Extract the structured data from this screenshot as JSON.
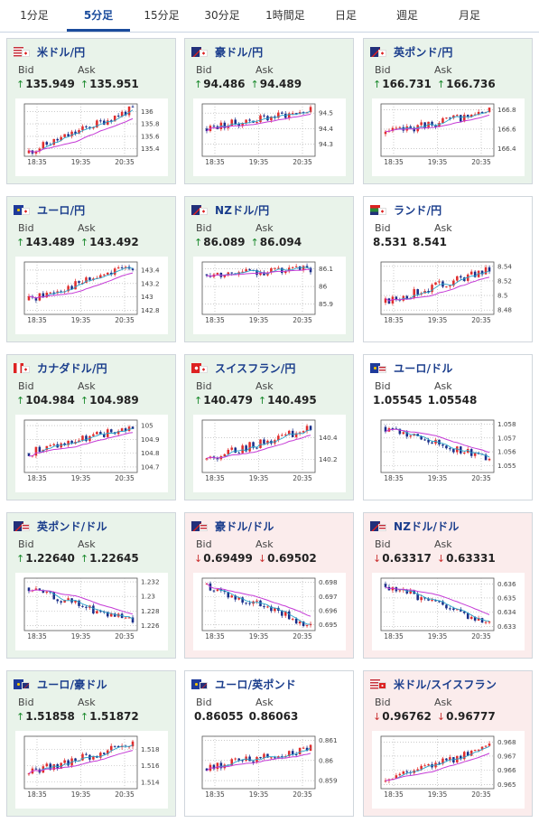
{
  "tabs": [
    {
      "label": "1分足",
      "active": false
    },
    {
      "label": "5分足",
      "active": true
    },
    {
      "label": "15分足",
      "active": false
    },
    {
      "label": "30分足",
      "active": false
    },
    {
      "label": "1時間足",
      "active": false
    },
    {
      "label": "日足",
      "active": false
    },
    {
      "label": "週足",
      "active": false
    },
    {
      "label": "月足",
      "active": false
    }
  ],
  "labels": {
    "bid": "Bid",
    "ask": "Ask"
  },
  "colors": {
    "up_bg": "#e9f3ea",
    "down_bg": "#fbecec",
    "flat_bg": "#ffffff",
    "candle_up": "#e02d2d",
    "candle_down": "#1a2f8a",
    "ma_short": "#29a3c9",
    "ma_long": "#c53ad6",
    "title": "#1a3d8c"
  },
  "cards": [
    {
      "pair": "米ドル/円",
      "flag": "us-jp-flag",
      "trend": "up",
      "bid_dir": "up",
      "ask_dir": "up",
      "bid": "135.949",
      "ask": "135.951",
      "chart_data": {
        "type": "candlestick",
        "x_ticks": [
          "18:35",
          "19:35",
          "20:35"
        ],
        "y_ticks": [
          "136",
          "135.8",
          "135.6",
          "135.4"
        ],
        "ylim": [
          135.28,
          136.12
        ],
        "start": 135.33,
        "end": 136.04,
        "seed": 11
      }
    },
    {
      "pair": "豪ドル/円",
      "flag": "au-jp-flag",
      "trend": "up",
      "bid_dir": "up",
      "ask_dir": "up",
      "bid": "94.486",
      "ask": "94.489",
      "chart_data": {
        "type": "candlestick",
        "x_ticks": [
          "18:35",
          "19:35",
          "20:35"
        ],
        "y_ticks": [
          "94.5",
          "94.4",
          "94.3"
        ],
        "ylim": [
          94.22,
          94.56
        ],
        "start": 94.4,
        "end": 94.52,
        "seed": 23
      }
    },
    {
      "pair": "英ポンド/円",
      "flag": "gb-jp-flag",
      "trend": "up",
      "bid_dir": "up",
      "ask_dir": "up",
      "bid": "166.731",
      "ask": "166.736",
      "chart_data": {
        "type": "candlestick",
        "x_ticks": [
          "18:35",
          "19:35",
          "20:35"
        ],
        "y_ticks": [
          "166.8",
          "166.6",
          "166.4"
        ],
        "ylim": [
          166.32,
          166.86
        ],
        "start": 166.55,
        "end": 166.78,
        "seed": 37
      }
    },
    {
      "pair": "ユーロ/円",
      "flag": "eu-jp-flag",
      "trend": "up",
      "bid_dir": "up",
      "ask_dir": "up",
      "bid": "143.489",
      "ask": "143.492",
      "chart_data": {
        "type": "candlestick",
        "x_ticks": [
          "18:35",
          "19:35",
          "20:35"
        ],
        "y_ticks": [
          "143.4",
          "143.2",
          "143",
          "142.8"
        ],
        "ylim": [
          142.74,
          143.52
        ],
        "start": 142.95,
        "end": 143.46,
        "seed": 41
      }
    },
    {
      "pair": "NZドル/円",
      "flag": "nz-jp-flag",
      "trend": "up",
      "bid_dir": "up",
      "ask_dir": "up",
      "bid": "86.089",
      "ask": "86.094",
      "chart_data": {
        "type": "candlestick",
        "x_ticks": [
          "18:35",
          "19:35",
          "20:35"
        ],
        "y_ticks": [
          "86.1",
          "86",
          "85.9"
        ],
        "ylim": [
          85.84,
          86.14
        ],
        "start": 86.07,
        "end": 86.1,
        "seed": 53
      }
    },
    {
      "pair": "ランド/円",
      "flag": "za-jp-flag",
      "trend": "flat",
      "bid_dir": "none",
      "ask_dir": "none",
      "bid": "8.531",
      "ask": "8.541",
      "chart_data": {
        "type": "candlestick",
        "x_ticks": [
          "18:35",
          "19:35",
          "20:35"
        ],
        "y_ticks": [
          "8.54",
          "8.52",
          "8.5",
          "8.48"
        ],
        "ylim": [
          8.474,
          8.546
        ],
        "start": 8.49,
        "end": 8.536,
        "seed": 67
      }
    },
    {
      "pair": "カナダドル/円",
      "flag": "ca-jp-flag",
      "trend": "up",
      "bid_dir": "up",
      "ask_dir": "up",
      "bid": "104.984",
      "ask": "104.989",
      "chart_data": {
        "type": "candlestick",
        "x_ticks": [
          "18:35",
          "19:35",
          "20:35"
        ],
        "y_ticks": [
          "105",
          "104.9",
          "104.8",
          "104.7"
        ],
        "ylim": [
          104.66,
          105.04
        ],
        "start": 104.8,
        "end": 104.99,
        "seed": 71
      }
    },
    {
      "pair": "スイスフラン/円",
      "flag": "ch-jp-flag",
      "trend": "up",
      "bid_dir": "up",
      "ask_dir": "up",
      "bid": "140.479",
      "ask": "140.495",
      "chart_data": {
        "type": "candlestick",
        "x_ticks": [
          "18:35",
          "19:35",
          "20:35"
        ],
        "y_ticks": [
          "140.4",
          "140.2"
        ],
        "ylim": [
          140.08,
          140.56
        ],
        "start": 140.2,
        "end": 140.48,
        "seed": 83
      }
    },
    {
      "pair": "ユーロ/ドル",
      "flag": "eu-us-flag",
      "trend": "flat",
      "bid_dir": "none",
      "ask_dir": "none",
      "bid": "1.05545",
      "ask": "1.05548",
      "chart_data": {
        "type": "candlestick",
        "x_ticks": [
          "18:35",
          "19:35",
          "20:35"
        ],
        "y_ticks": [
          "1.058",
          "1.057",
          "1.056",
          "1.055"
        ],
        "ylim": [
          1.0545,
          1.0583
        ],
        "start": 1.0578,
        "end": 1.0555,
        "seed": 97
      }
    },
    {
      "pair": "英ポンド/ドル",
      "flag": "gb-us-flag",
      "trend": "up",
      "bid_dir": "up",
      "ask_dir": "up",
      "bid": "1.22640",
      "ask": "1.22645",
      "chart_data": {
        "type": "candlestick",
        "x_ticks": [
          "18:35",
          "19:35",
          "20:35"
        ],
        "y_ticks": [
          "1.232",
          "1.23",
          "1.228",
          "1.226"
        ],
        "ylim": [
          1.2253,
          1.2325
        ],
        "start": 1.2312,
        "end": 1.2264,
        "seed": 101
      }
    },
    {
      "pair": "豪ドル/ドル",
      "flag": "au-us-flag",
      "trend": "down",
      "bid_dir": "down",
      "ask_dir": "down",
      "bid": "0.69499",
      "ask": "0.69502",
      "chart_data": {
        "type": "candlestick",
        "x_ticks": [
          "18:35",
          "19:35",
          "20:35"
        ],
        "y_ticks": [
          "0.698",
          "0.697",
          "0.696",
          "0.695"
        ],
        "ylim": [
          0.6946,
          0.6983
        ],
        "start": 0.6979,
        "end": 0.695,
        "seed": 113
      }
    },
    {
      "pair": "NZドル/ドル",
      "flag": "nz-us-flag",
      "trend": "down",
      "bid_dir": "down",
      "ask_dir": "down",
      "bid": "0.63317",
      "ask": "0.63331",
      "chart_data": {
        "type": "candlestick",
        "x_ticks": [
          "18:35",
          "19:35",
          "20:35"
        ],
        "y_ticks": [
          "0.636",
          "0.635",
          "0.634",
          "0.633"
        ],
        "ylim": [
          0.6327,
          0.6364
        ],
        "start": 0.636,
        "end": 0.6332,
        "seed": 127
      }
    },
    {
      "pair": "ユーロ/豪ドル",
      "flag": "eu-au-flag",
      "trend": "up",
      "bid_dir": "up",
      "ask_dir": "up",
      "bid": "1.51858",
      "ask": "1.51872",
      "chart_data": {
        "type": "candlestick",
        "x_ticks": [
          "18:35",
          "19:35",
          "20:35"
        ],
        "y_ticks": [
          "1.518",
          "1.516",
          "1.514"
        ],
        "ylim": [
          1.5132,
          1.5196
        ],
        "start": 1.515,
        "end": 1.5187,
        "seed": 131
      }
    },
    {
      "pair": "ユーロ/英ポンド",
      "flag": "eu-gb-flag",
      "trend": "flat",
      "bid_dir": "none",
      "ask_dir": "none",
      "bid": "0.86055",
      "ask": "0.86063",
      "chart_data": {
        "type": "candlestick",
        "x_ticks": [
          "18:35",
          "19:35",
          "20:35"
        ],
        "y_ticks": [
          "0.861",
          "0.86",
          "0.859"
        ],
        "ylim": [
          0.8586,
          0.8612
        ],
        "start": 0.8596,
        "end": 0.8606,
        "seed": 149
      }
    },
    {
      "pair": "米ドル/スイスフラン",
      "flag": "us-ch-flag",
      "trend": "down",
      "bid_dir": "down",
      "ask_dir": "down",
      "bid": "0.96762",
      "ask": "0.96777",
      "chart_data": {
        "type": "candlestick",
        "x_ticks": [
          "18:35",
          "19:35",
          "20:35"
        ],
        "y_ticks": [
          "0.968",
          "0.967",
          "0.966",
          "0.965"
        ],
        "ylim": [
          0.9647,
          0.9684
        ],
        "start": 0.9652,
        "end": 0.9676,
        "seed": 157
      }
    }
  ]
}
